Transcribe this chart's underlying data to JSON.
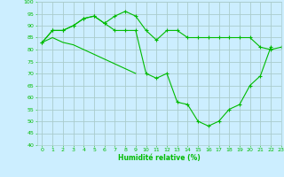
{
  "xlabel": "Humidité relative (%)",
  "bg_color": "#cceeff",
  "grid_color": "#aacccc",
  "line_color": "#00bb00",
  "x": [
    0,
    1,
    2,
    3,
    4,
    5,
    6,
    7,
    8,
    9,
    10,
    11,
    12,
    13,
    14,
    15,
    16,
    17,
    18,
    19,
    20,
    21,
    22,
    23
  ],
  "line1": [
    83,
    88,
    88,
    90,
    93,
    94,
    91,
    94,
    96,
    94,
    88,
    84,
    88,
    88,
    85,
    85,
    85,
    85,
    85,
    85,
    85,
    81,
    80,
    81
  ],
  "line2": [
    83,
    88,
    88,
    90,
    93,
    94,
    91,
    88,
    88,
    88,
    70,
    68,
    70,
    58,
    57,
    50,
    48,
    50,
    55,
    57,
    65,
    69,
    81,
    null
  ],
  "line3": [
    83,
    85,
    83,
    82,
    80,
    78,
    76,
    74,
    72,
    70,
    null,
    null,
    null,
    null,
    null,
    null,
    null,
    null,
    null,
    null,
    null,
    null,
    null,
    null
  ],
  "ylim": [
    40,
    100
  ],
  "xlim": [
    -0.5,
    23
  ],
  "yticks": [
    40,
    45,
    50,
    55,
    60,
    65,
    70,
    75,
    80,
    85,
    90,
    95,
    100
  ],
  "xticks": [
    0,
    1,
    2,
    3,
    4,
    5,
    6,
    7,
    8,
    9,
    10,
    11,
    12,
    13,
    14,
    15,
    16,
    17,
    18,
    19,
    20,
    21,
    22,
    23
  ],
  "xlabel_fontsize": 5.5,
  "tick_fontsize": 4.5
}
